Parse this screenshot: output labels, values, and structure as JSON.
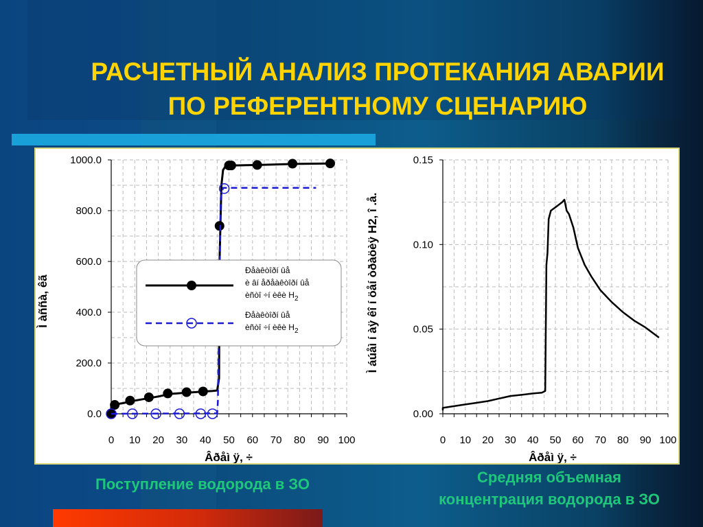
{
  "title": {
    "line1": "РАСЧЕТНЫЙ АНАЛИЗ ПРОТЕКАНИЯ АВАРИИ",
    "line2": "ПО РЕФЕРЕНТНОМУ СЦЕНАРИЮ"
  },
  "captions": {
    "left": "Поступление водорода в ЗО",
    "right_line1": "Средняя объемная",
    "right_line2": "концентрация водорода в ЗО"
  },
  "colors": {
    "title": "#ffd400",
    "caption": "#1ec87a",
    "series1": "#000000",
    "series2": "#1a1ad4"
  },
  "chart_data": [
    {
      "type": "line",
      "xlabel": "Âðåì ÿ, ÷",
      "ylabel": "Ì àññà, êã",
      "xlim": [
        0,
        100
      ],
      "ylim": [
        0,
        1000
      ],
      "xticks": [
        "0",
        "10",
        "20",
        "30",
        "40",
        "50",
        "60",
        "70",
        "80",
        "90",
        "100"
      ],
      "yticks": [
        "0.0",
        "200.0",
        "400.0",
        "600.0",
        "800.0",
        "1000.0"
      ],
      "grid": true,
      "legend_position": "middle-left",
      "series": [
        {
          "name": "Ðåàêòîðí ûå è âí åðåàêòîðí ûå èñòî ÷í èêè H2",
          "marker": "filled-circle",
          "line": [
            [
              0,
              0
            ],
            [
              0,
              35
            ],
            [
              5,
              42
            ],
            [
              10,
              52
            ],
            [
              15,
              60
            ],
            [
              20,
              68
            ],
            [
              25,
              78
            ],
            [
              30,
              82
            ],
            [
              35,
              85
            ],
            [
              40,
              88
            ],
            [
              43,
              90
            ],
            [
              45,
              92
            ],
            [
              45.8,
              140
            ],
            [
              46,
              600
            ],
            [
              46.8,
              900
            ],
            [
              47.5,
              960
            ],
            [
              48.5,
              975
            ],
            [
              52,
              978
            ],
            [
              62,
              980
            ],
            [
              78,
              984
            ],
            [
              93,
              986
            ]
          ],
          "markers": [
            [
              0,
              0
            ],
            [
              1.5,
              35
            ],
            [
              8,
              52
            ],
            [
              16,
              65
            ],
            [
              24,
              80
            ],
            [
              32,
              85
            ],
            [
              39,
              88
            ],
            [
              46,
              740
            ],
            [
              50,
              978
            ],
            [
              51,
              978
            ],
            [
              62,
              980
            ],
            [
              77,
              985
            ],
            [
              93,
              986
            ]
          ]
        },
        {
          "name": "Ðåàêòîðí ûå èñòî ÷í èêè H2",
          "marker": "open-circle",
          "line": [
            [
              0,
              0
            ],
            [
              45,
              2
            ],
            [
              45.3,
              50
            ],
            [
              46.5,
              850
            ],
            [
              47.5,
              890
            ],
            [
              87,
              890
            ]
          ],
          "markers": [
            [
              0,
              0
            ],
            [
              9,
              0
            ],
            [
              19,
              0
            ],
            [
              29,
              0
            ],
            [
              38,
              0
            ],
            [
              43,
              0
            ],
            [
              48,
              887
            ]
          ]
        }
      ]
    },
    {
      "type": "line",
      "xlabel": "Âðåì ÿ, ÷",
      "ylabel": "Ì áúåì í àÿ êî í öåí òðàöèÿ H2, î .å.",
      "xlim": [
        0,
        100
      ],
      "ylim": [
        0,
        0.15
      ],
      "xticks": [
        "0",
        "10",
        "20",
        "30",
        "40",
        "50",
        "60",
        "70",
        "80",
        "90",
        "100"
      ],
      "yticks": [
        "0.00",
        "0.05",
        "0.10",
        "0.15"
      ],
      "grid": true,
      "series": [
        {
          "line": [
            [
              0,
              0.002
            ],
            [
              0,
              0.0035
            ],
            [
              5,
              0.0045
            ],
            [
              10,
              0.0055
            ],
            [
              15,
              0.0065
            ],
            [
              20,
              0.0075
            ],
            [
              25,
              0.009
            ],
            [
              30,
              0.0105
            ],
            [
              35,
              0.0112
            ],
            [
              40,
              0.012
            ],
            [
              44,
              0.0125
            ],
            [
              45.5,
              0.0135
            ],
            [
              46,
              0.088
            ],
            [
              46.5,
              0.095
            ],
            [
              47,
              0.115
            ],
            [
              48,
              0.12
            ],
            [
              50,
              0.122
            ],
            [
              52,
              0.124
            ],
            [
              53,
              0.125
            ],
            [
              54,
              0.1265
            ],
            [
              55,
              0.12
            ],
            [
              56,
              0.118
            ],
            [
              58,
              0.11
            ],
            [
              60,
              0.098
            ],
            [
              63,
              0.088
            ],
            [
              66,
              0.081
            ],
            [
              70,
              0.073
            ],
            [
              75,
              0.066
            ],
            [
              80,
              0.06
            ],
            [
              85,
              0.055
            ],
            [
              90,
              0.051
            ],
            [
              95,
              0.046
            ],
            [
              96,
              0.045
            ]
          ]
        }
      ]
    }
  ]
}
